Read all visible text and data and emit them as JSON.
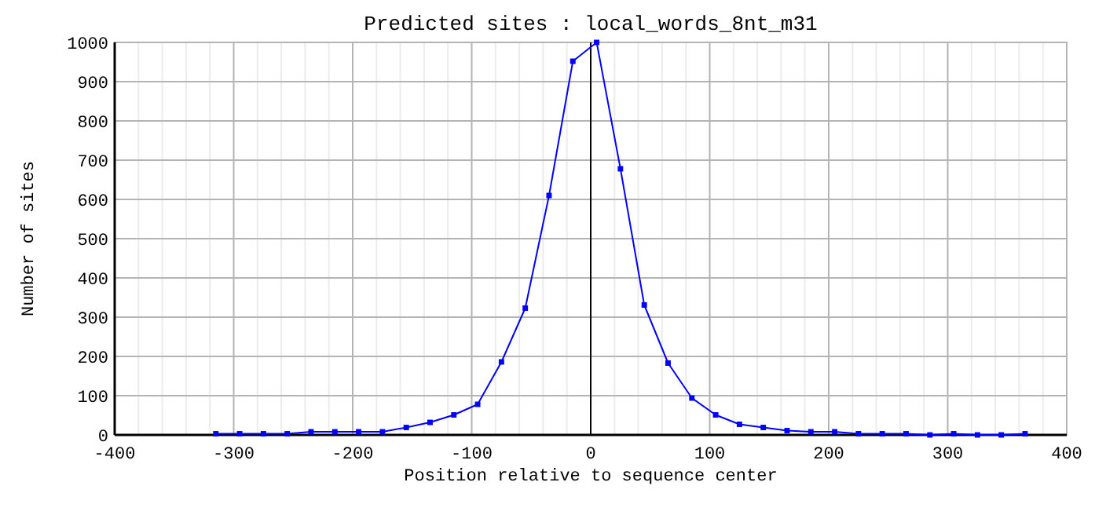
{
  "chart_data": {
    "type": "line",
    "title": "Predicted sites : local_words_8nt_m31",
    "xlabel": "Position relative to sequence center",
    "ylabel": "Number of sites",
    "xlim": [
      -400,
      400
    ],
    "xticks": [
      -400,
      -300,
      -200,
      -100,
      0,
      100,
      200,
      300,
      400
    ],
    "ylim": [
      0,
      1000
    ],
    "yticks": [
      0,
      100,
      200,
      300,
      400,
      500,
      600,
      700,
      800,
      900,
      1000
    ],
    "grid": true,
    "marker": "square",
    "ref_lines": [
      {
        "axis": "x",
        "value": 0,
        "color": "#000000"
      }
    ],
    "x": [
      -315,
      -295,
      -275,
      -255,
      -235,
      -215,
      -195,
      -175,
      -155,
      -135,
      -115,
      -95,
      -75,
      -55,
      -35,
      -15,
      5,
      25,
      45,
      65,
      85,
      105,
      125,
      145,
      165,
      185,
      205,
      225,
      245,
      265,
      285,
      305,
      325,
      345,
      365
    ],
    "series": [
      {
        "color": "#0000ff",
        "values": [
          3,
          3,
          3,
          3,
          8,
          8,
          8,
          8,
          19,
          32,
          51,
          78,
          186,
          323,
          610,
          952,
          1000,
          678,
          331,
          183,
          94,
          51,
          27,
          19,
          11,
          8,
          8,
          3,
          3,
          3,
          0,
          3,
          0,
          0,
          3
        ]
      }
    ]
  }
}
